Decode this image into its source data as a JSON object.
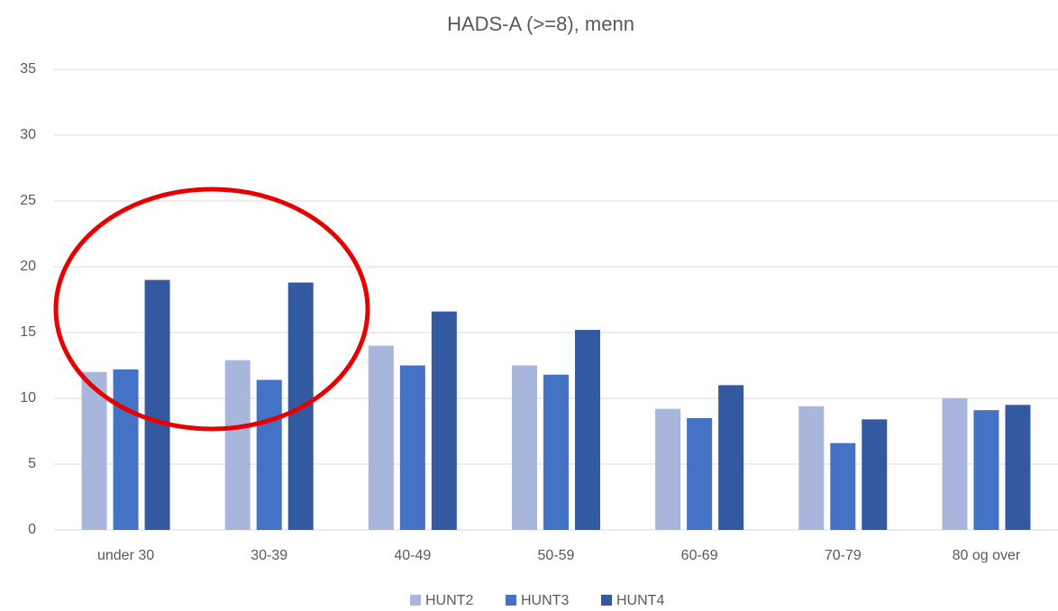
{
  "chart_data": {
    "type": "bar",
    "title": "HADS-A (>=8), menn",
    "categories": [
      "under 30",
      "30-39",
      "40-49",
      "50-59",
      "60-69",
      "70-79",
      "80 og over"
    ],
    "series": [
      {
        "name": "HUNT2",
        "color": "#a9b6dc",
        "values": [
          12.0,
          12.9,
          14.0,
          12.5,
          9.2,
          9.4,
          10.0
        ]
      },
      {
        "name": "HUNT3",
        "color": "#4472c4",
        "values": [
          12.2,
          11.4,
          12.5,
          11.8,
          8.5,
          6.6,
          9.1
        ]
      },
      {
        "name": "HUNT4",
        "color": "#335aa1",
        "values": [
          19.0,
          18.8,
          16.6,
          15.2,
          11.0,
          8.4,
          9.5
        ]
      }
    ],
    "ylim": [
      0,
      35
    ],
    "yticks": [
      0,
      5,
      10,
      15,
      20,
      25,
      30,
      35
    ],
    "grid": true,
    "legend": "bottom"
  }
}
